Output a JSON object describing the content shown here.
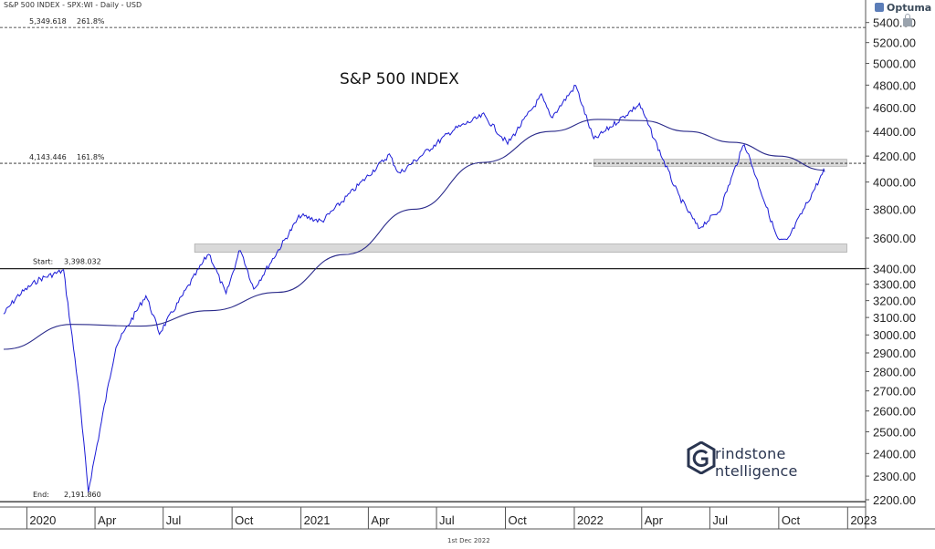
{
  "header": {
    "text": "S&P 500 INDEX - SPX:WI - Daily - USD"
  },
  "brand": {
    "name": "Optuma"
  },
  "footer": {
    "date": "1st Dec 2022"
  },
  "logo": {
    "line1": "rindstone",
    "line2": "ntelligence"
  },
  "colors": {
    "price": "#1a1ad6",
    "ma": "#2a2a8a",
    "zone": "#d9d9d9",
    "zone_border": "#9c9c9c"
  },
  "chart_data": {
    "type": "line",
    "title": "S&P 500 INDEX",
    "xlabel": "",
    "ylabel": "",
    "x_tick_labels": [
      "2020",
      "Apr",
      "Jul",
      "Oct",
      "2021",
      "Apr",
      "Jul",
      "Oct",
      "2022",
      "Apr",
      "Jul",
      "Oct",
      "2023"
    ],
    "y_tick_labels": [
      "5400.00",
      "5200.00",
      "5000.00",
      "4800.00",
      "4600.00",
      "4400.00",
      "4200.00",
      "4000.00",
      "3800.00",
      "3600.00",
      "3400.00",
      "3300.00",
      "3200.00",
      "3100.00",
      "3000.00",
      "2900.00",
      "2800.00",
      "2700.00",
      "2600.00",
      "2500.00",
      "2400.00",
      "2300.00",
      "2200.00"
    ],
    "y_scale": "log",
    "ylim": [
      2170,
      5500
    ],
    "grid": false,
    "series": [
      {
        "role": "price",
        "x": [
          "2019-12-01",
          "2019-12-20",
          "2020-01-17",
          "2020-02-19",
          "2020-03-09",
          "2020-03-23",
          "2020-04-29",
          "2020-06-08",
          "2020-06-26",
          "2020-08-31",
          "2020-09-23",
          "2020-10-12",
          "2020-10-30",
          "2020-12-31",
          "2021-01-29",
          "2021-04-29",
          "2021-05-12",
          "2021-07-23",
          "2021-09-02",
          "2021-10-04",
          "2021-11-18",
          "2021-12-01",
          "2022-01-03",
          "2022-01-27",
          "2022-03-29",
          "2022-05-20",
          "2022-06-16",
          "2022-07-14",
          "2022-08-16",
          "2022-09-30",
          "2022-10-12",
          "2022-11-30",
          "2022-12-01"
        ],
        "values": [
          3120,
          3230,
          3330,
          3386,
          2750,
          2237,
          2940,
          3232,
          3010,
          3500,
          3237,
          3530,
          3270,
          3756,
          3714,
          4211,
          4063,
          4411,
          4536,
          4300,
          4705,
          4513,
          4796,
          4330,
          4631,
          3901,
          3667,
          3790,
          4305,
          3585,
          3578,
          4080,
          4076
        ]
      },
      {
        "role": "moving-average",
        "x": [
          "2019-12-01",
          "2020-03-01",
          "2020-06-01",
          "2020-09-01",
          "2020-12-01",
          "2021-03-01",
          "2021-06-01",
          "2021-09-01",
          "2021-12-01",
          "2022-02-01",
          "2022-04-01",
          "2022-06-01",
          "2022-08-01",
          "2022-10-01",
          "2022-12-01"
        ],
        "values": [
          2920,
          3060,
          3050,
          3140,
          3250,
          3490,
          3800,
          4150,
          4400,
          4500,
          4490,
          4400,
          4310,
          4200,
          4090
        ]
      }
    ],
    "levels": [
      {
        "label": "5,349.618",
        "pct": "261.8%",
        "value": 5349.618,
        "style": "dashed"
      },
      {
        "label": "4,143.446",
        "pct": "161.8%",
        "value": 4143.446,
        "style": "dashed"
      },
      {
        "label": "Start:",
        "value_label": "3,398.032",
        "value": 3398.032,
        "style": "solid"
      },
      {
        "label": "End:",
        "value_label": "2,191.860",
        "value": 2191.86,
        "style": "solid"
      }
    ],
    "zones": [
      {
        "low": 3505,
        "high": 3560,
        "from": "2020-08-12",
        "to": "2022-12-31"
      },
      {
        "low": 4120,
        "high": 4175,
        "from": "2022-01-27",
        "to": "2022-12-31"
      }
    ]
  }
}
